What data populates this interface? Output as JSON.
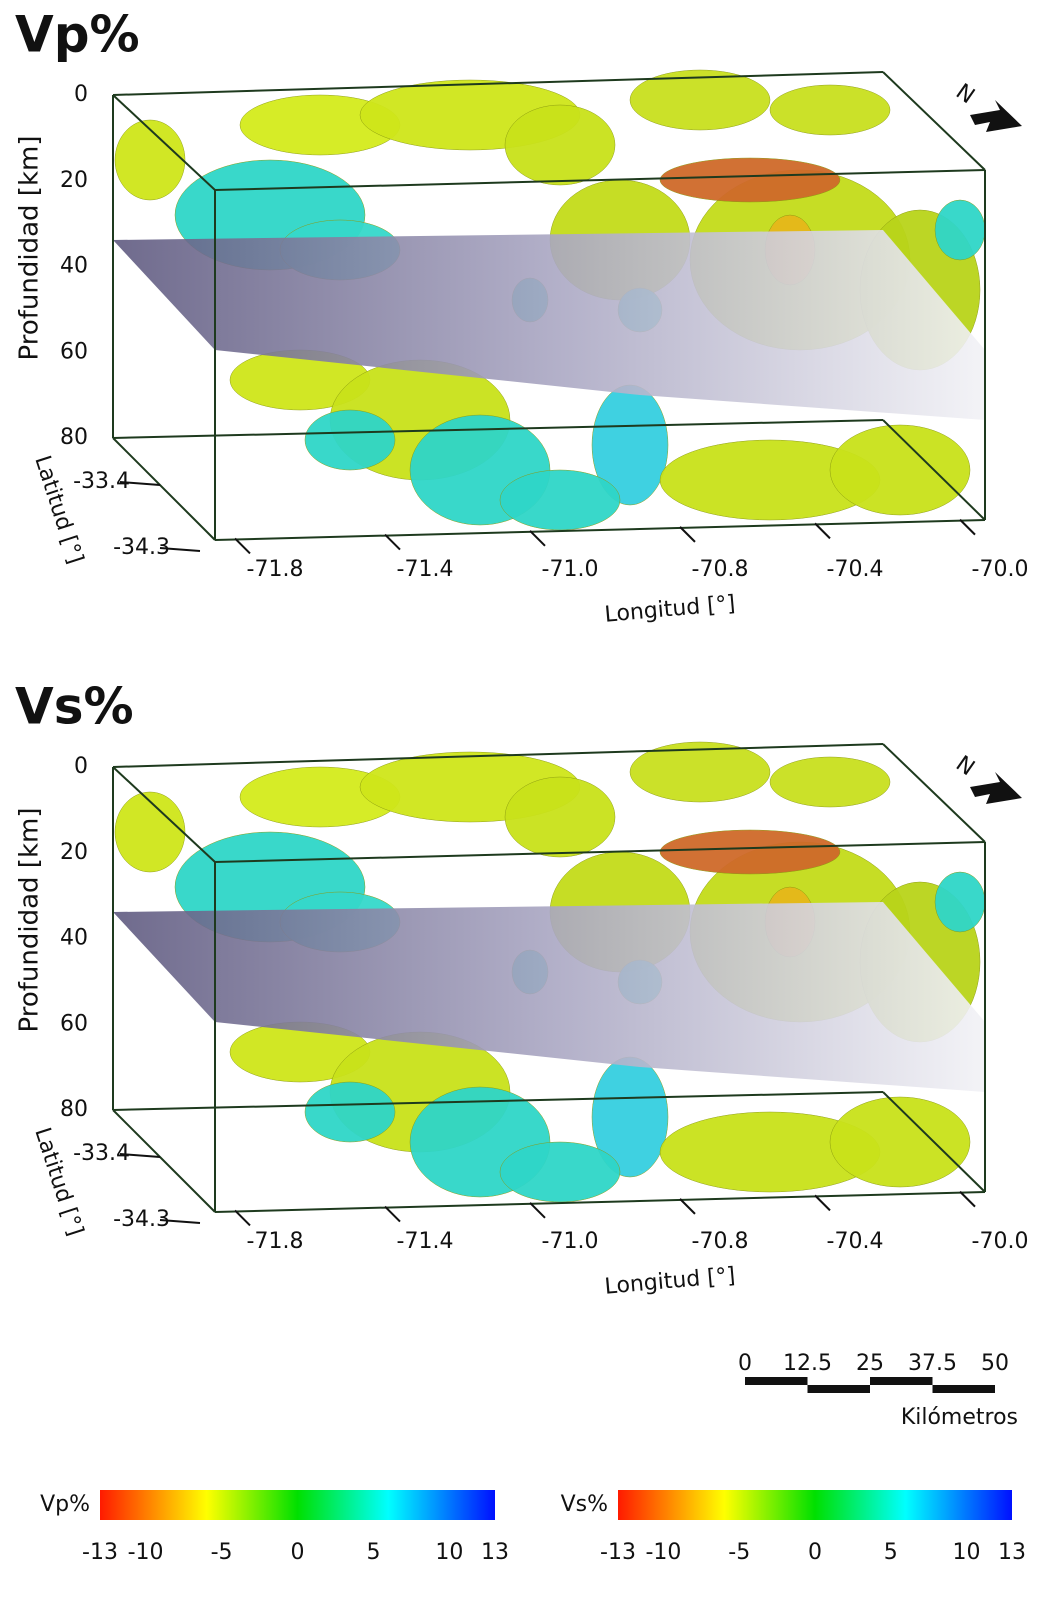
{
  "panels": [
    {
      "title": "Vp%",
      "depth_axis": {
        "label": "Profundidad [km]",
        "ticks": [
          "0",
          "20",
          "40",
          "60",
          "80"
        ]
      },
      "lat_axis": {
        "label": "Latitud [°]",
        "ticks": [
          "-33.4",
          "-34.3"
        ]
      },
      "lon_axis": {
        "label": "Longitud [°]",
        "ticks": [
          "-71.8",
          "-71.4",
          "-71.0",
          "-70.8",
          "-70.4",
          "-70.0"
        ]
      },
      "north": "N"
    },
    {
      "title": "Vs%",
      "depth_axis": {
        "label": "Profundidad [km]",
        "ticks": [
          "0",
          "20",
          "40",
          "60",
          "80"
        ]
      },
      "lat_axis": {
        "label": "Latitud [°]",
        "ticks": [
          "-33.4",
          "-34.3"
        ]
      },
      "lon_axis": {
        "label": "Longitud [°]",
        "ticks": [
          "-71.8",
          "-71.4",
          "-71.0",
          "-70.8",
          "-70.4",
          "-70.0"
        ]
      },
      "north": "N"
    }
  ],
  "scale_bar": {
    "ticks": [
      "0",
      "12.5",
      "25",
      "37.5",
      "50"
    ],
    "label": "Kilómetros"
  },
  "colorbars": [
    {
      "label": "Vp%",
      "ticks": [
        "-13",
        "-10",
        "-5",
        "0",
        "5",
        "10",
        "13"
      ]
    },
    {
      "label": "Vs%",
      "ticks": [
        "-13",
        "-10",
        "-5",
        "0",
        "5",
        "10",
        "13"
      ]
    }
  ]
}
